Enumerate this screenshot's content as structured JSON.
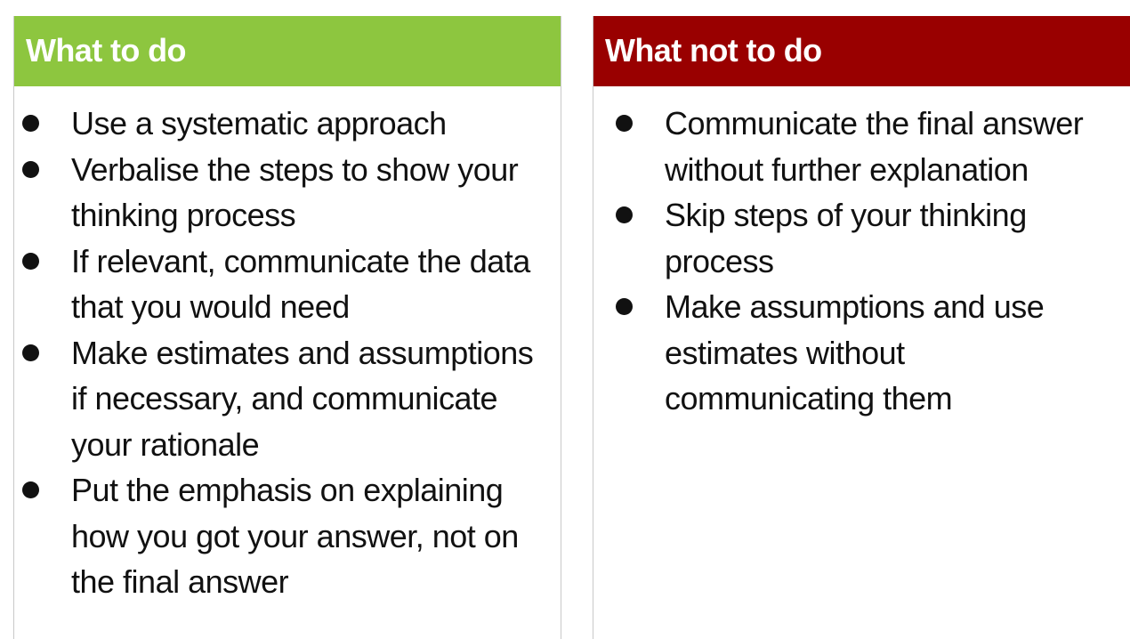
{
  "colors": {
    "do_header": "#8dc63f",
    "dont_header": "#990000"
  },
  "do_panel": {
    "title": "What to do",
    "items": [
      "Use a systematic approach",
      "Verbalise the steps to show your thinking process",
      "If relevant, communicate the data that you would need",
      "Make estimates and assumptions if necessary, and communicate your rationale",
      "Put the emphasis on explaining how you got your answer, not on the final answer"
    ]
  },
  "dont_panel": {
    "title": "What not to do",
    "items": [
      "Communicate the final answer without further explanation",
      "Skip steps of your thinking process",
      "Make assumptions and use estimates without communicating them"
    ]
  }
}
